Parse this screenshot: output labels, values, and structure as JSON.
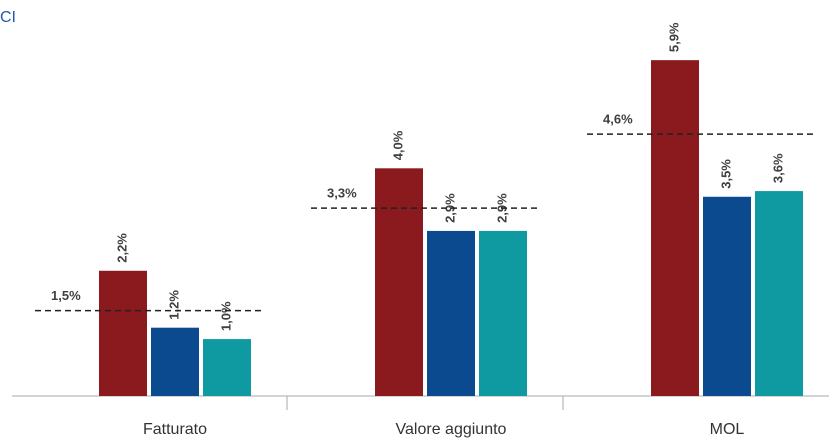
{
  "header": {
    "text": "CI"
  },
  "chart_data": {
    "type": "bar",
    "categories": [
      "Fatturato",
      "Valore aggiunto",
      "MOL"
    ],
    "series": [
      {
        "color": "#8b1a1f",
        "values": [
          2.2,
          4.0,
          5.9
        ],
        "value_labels": [
          "2,2%",
          "4,0%",
          "5,9%"
        ]
      },
      {
        "color": "#0b4a8e",
        "values": [
          1.2,
          2.9,
          3.5
        ],
        "value_labels": [
          "1,2%",
          "2,9%",
          "3,5%"
        ]
      },
      {
        "color": "#0f9aa2",
        "values": [
          1.0,
          2.9,
          3.6
        ],
        "value_labels": [
          "1,0%",
          "2,9%",
          "3,6%"
        ]
      }
    ],
    "reference_lines": {
      "values": [
        1.5,
        3.3,
        4.6
      ],
      "value_labels": [
        "1,5%",
        "3,3%",
        "4,6%"
      ]
    },
    "ylim": [
      0,
      6.5
    ]
  }
}
